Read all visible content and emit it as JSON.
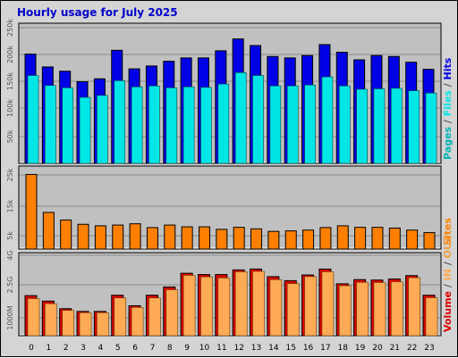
{
  "title": "Hourly usage for July 2025",
  "colors": {
    "hits": "#0000e6",
    "files": "#00e6e6",
    "pages": "#00b4b4",
    "sites": "#ff8000",
    "volume": "#dd0000",
    "in": "#ffaa55",
    "out": "#f0a040",
    "panel": "#c0c0c0",
    "grid": "#8c8c8c"
  },
  "chart_data": [
    {
      "type": "bar",
      "panel": "hits_files_pages",
      "categories": [
        "0",
        "1",
        "2",
        "3",
        "4",
        "5",
        "6",
        "7",
        "8",
        "9",
        "10",
        "11",
        "12",
        "13",
        "14",
        "15",
        "16",
        "17",
        "18",
        "19",
        "20",
        "21",
        "22",
        "23"
      ],
      "series": [
        {
          "name": "Hits",
          "values": [
            230,
            203,
            194,
            172,
            178,
            238,
            199,
            205,
            215,
            222,
            222,
            237,
            262,
            248,
            225,
            222,
            227,
            250,
            234,
            218,
            227,
            225,
            213,
            198
          ]
        },
        {
          "name": "Files",
          "values": [
            185,
            164,
            159,
            139,
            143,
            174,
            161,
            163,
            159,
            161,
            160,
            167,
            191,
            185,
            163,
            163,
            165,
            182,
            163,
            156,
            157,
            158,
            153,
            148
          ]
        },
        {
          "name": "Pages",
          "values": [
            0,
            0,
            0,
            0,
            0,
            0,
            0,
            0,
            0,
            0,
            0,
            0,
            0,
            0,
            0,
            0,
            0,
            0,
            0,
            0,
            0,
            0,
            0,
            0
          ]
        }
      ],
      "yticks": [
        "50k",
        "100k",
        "150k",
        "200k",
        "250k"
      ],
      "ylim": [
        0,
        280
      ],
      "side_label": [
        "Pages",
        " / ",
        "Files",
        " / ",
        "Hits"
      ]
    },
    {
      "type": "bar",
      "panel": "sites",
      "categories": [
        "0",
        "1",
        "2",
        "3",
        "4",
        "5",
        "6",
        "7",
        "8",
        "9",
        "10",
        "11",
        "12",
        "13",
        "14",
        "15",
        "16",
        "17",
        "18",
        "19",
        "20",
        "21",
        "22",
        "23"
      ],
      "series": [
        {
          "name": "Sites",
          "values": [
            29.5,
            14.5,
            11.5,
            9.8,
            9.2,
            9.5,
            10.0,
            8.5,
            9.5,
            8.8,
            8.8,
            7.8,
            8.6,
            8.0,
            7.0,
            7.2,
            7.5,
            8.5,
            9.2,
            8.6,
            8.6,
            8.3,
            7.5,
            6.5
          ]
        }
      ],
      "yticks": [
        "5k",
        "15k",
        "25k"
      ],
      "ylim": [
        0,
        30
      ],
      "side_label": [
        "Sites"
      ]
    },
    {
      "type": "bar",
      "panel": "volume",
      "categories": [
        "0",
        "1",
        "2",
        "3",
        "4",
        "5",
        "6",
        "7",
        "8",
        "9",
        "10",
        "11",
        "12",
        "13",
        "14",
        "15",
        "16",
        "17",
        "18",
        "19",
        "20",
        "21",
        "22",
        "23"
      ],
      "series": [
        {
          "name": "Volume",
          "values": [
            1.9,
            1.64,
            1.28,
            1.15,
            1.15,
            1.92,
            1.42,
            1.92,
            2.31,
            2.96,
            2.9,
            2.9,
            3.12,
            3.16,
            2.8,
            2.61,
            2.88,
            3.16,
            2.46,
            2.66,
            2.64,
            2.69,
            2.85,
            1.92
          ]
        },
        {
          "name": "IN",
          "values": [
            1.76,
            1.52,
            1.2,
            1.09,
            1.09,
            1.79,
            1.34,
            1.79,
            2.18,
            2.86,
            2.79,
            2.74,
            3.03,
            3.05,
            2.66,
            2.47,
            2.8,
            3.03,
            2.37,
            2.53,
            2.52,
            2.56,
            2.75,
            1.8
          ]
        },
        {
          "name": "OUT",
          "values": [
            0,
            0,
            0,
            0,
            0,
            0,
            0,
            0,
            0,
            0,
            0,
            0,
            0,
            0,
            0,
            0,
            0,
            0,
            0,
            0,
            0,
            0,
            0,
            0
          ]
        }
      ],
      "yticks": [
        "1000M",
        "2.5G",
        "4G"
      ],
      "ylim": [
        0,
        3.6
      ],
      "side_label": [
        "Volume",
        " / ",
        "IN",
        " / ",
        "OUT"
      ]
    }
  ]
}
